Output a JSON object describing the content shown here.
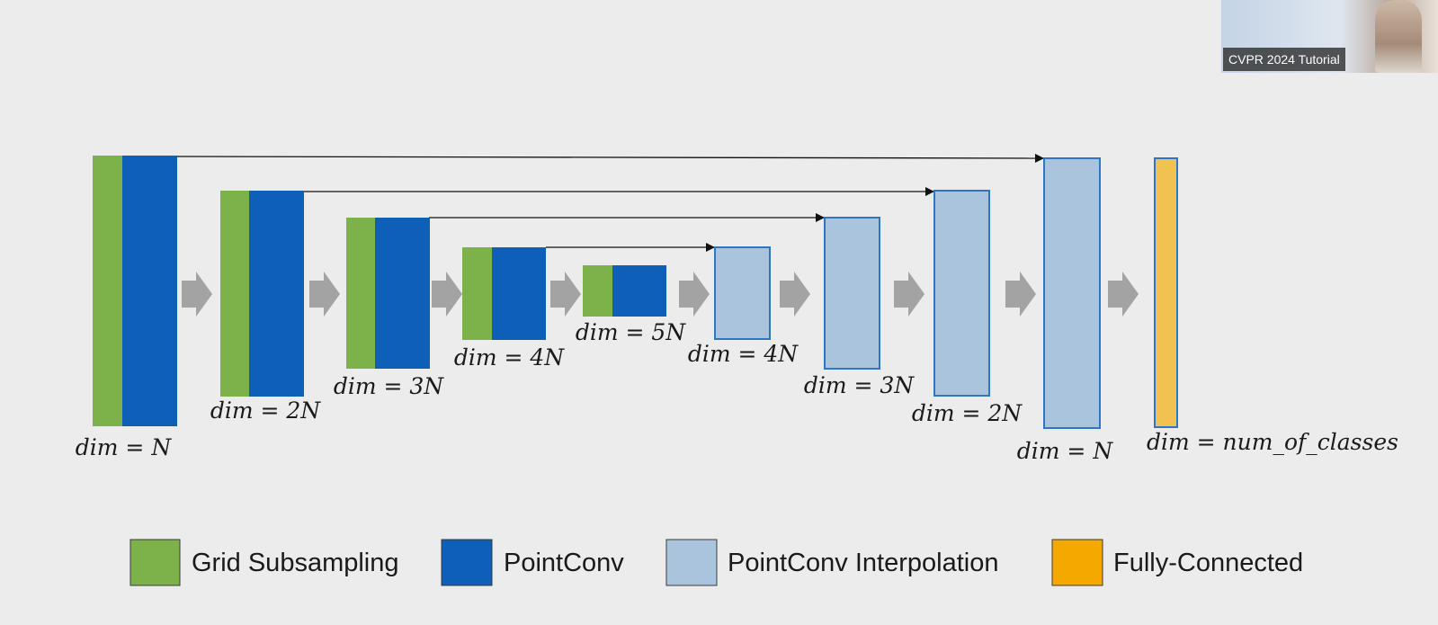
{
  "encoder": [
    {
      "label": "dim = N"
    },
    {
      "label": "dim = 2N"
    },
    {
      "label": "dim = 3N"
    },
    {
      "label": "dim = 4N"
    },
    {
      "label": "dim = 5N"
    }
  ],
  "decoder": [
    {
      "label": "dim = 4N"
    },
    {
      "label": "dim = 3N"
    },
    {
      "label": "dim = 2N"
    },
    {
      "label": "dim = N"
    }
  ],
  "output": {
    "label": "dim = num_of_classes"
  },
  "legend": [
    {
      "label": "Grid Subsampling",
      "color": "#7db24a"
    },
    {
      "label": "PointConv",
      "color": "#0e5fb8"
    },
    {
      "label": "PointConv Interpolation",
      "color": "#aac4de"
    },
    {
      "label": "Fully-Connected",
      "color": "#f5a800"
    }
  ],
  "colors": {
    "grid_subsampling": "#7db24a",
    "pointconv": "#0e5fb8",
    "interpolation_fill": "#aac4de",
    "interpolation_border": "#2e74c7",
    "fully_connected_fill": "#f1c250",
    "fully_connected_border": "#2e74c7",
    "flow_arrow": "#a3a3a3",
    "skip_arrow": "#111111"
  },
  "video": {
    "caption": "CVPR 2024 Tutorial"
  }
}
